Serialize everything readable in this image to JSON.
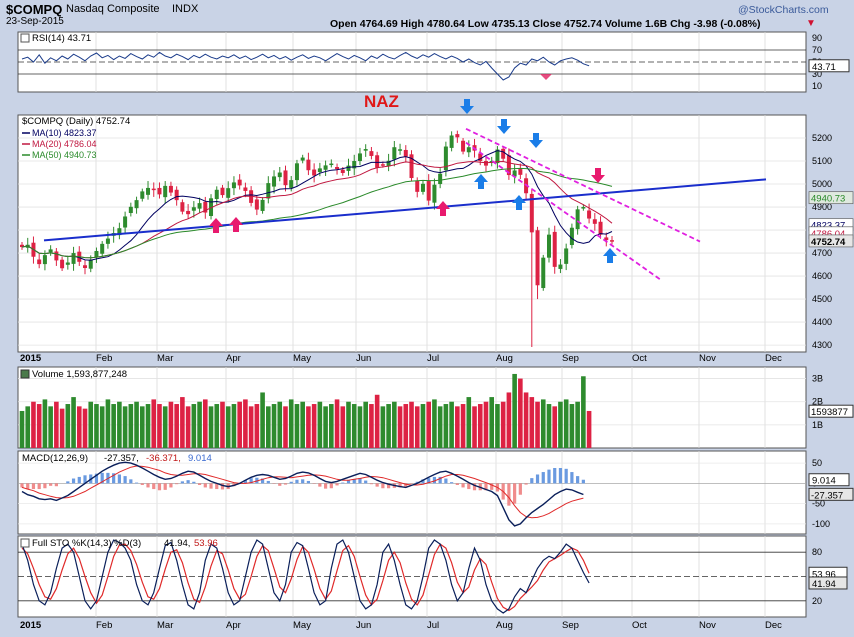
{
  "header": {
    "symbol": "$COMPQ",
    "name": "Nasdaq Composite",
    "exchange": "INDX",
    "date": "23-Sep-2015",
    "ohlc": "Open 4764.69  High 4780.64  Low 4735.13  Close 4752.74  Volume 1.6B  Chg -3.98 (-0.08%)",
    "watermark": "@StockCharts.com"
  },
  "colors": {
    "background": "#c9d3e6",
    "panel": "#ffffff",
    "up_bar": "#2e8b2e",
    "down_bar": "#dd2244",
    "trendline": "#1a2ecc",
    "channel": "#e020e0",
    "ma10": "#000060",
    "ma20": "#c01840",
    "ma50": "#2a8a2a",
    "naz_label": "#e01818",
    "arrow_up": "#e81a6e",
    "arrow_blue": "#1a7de8"
  },
  "chart_data": [
    {
      "type": "line",
      "panel": "rsi",
      "title": "RSI(14) 43.71",
      "yticks": [
        90,
        70,
        50,
        30,
        10
      ],
      "ylim": [
        0,
        100
      ],
      "reference_lines": [
        70,
        50,
        30
      ],
      "last_value_label": "43.71",
      "series": [
        {
          "values": [
            55,
            58,
            50,
            62,
            48,
            57,
            52,
            60,
            55,
            63,
            58,
            52,
            60,
            65,
            57,
            61,
            54,
            60,
            56,
            64,
            59,
            55,
            62,
            58,
            66,
            60,
            57,
            63,
            59,
            54,
            61,
            57,
            63,
            58,
            55,
            60,
            57,
            62,
            56,
            60,
            54,
            58,
            63,
            57,
            61,
            55,
            59,
            53,
            58,
            62,
            56,
            60,
            57,
            52,
            58,
            64,
            59,
            55,
            61,
            57,
            52,
            60,
            56,
            63,
            58,
            55,
            61,
            66,
            60,
            56,
            62,
            58,
            64,
            59,
            55,
            60,
            56,
            50,
            55,
            49,
            45,
            51,
            40,
            30,
            20,
            25,
            40,
            48,
            45,
            55,
            52,
            58,
            50,
            45,
            52,
            55,
            57,
            53,
            47,
            43.71
          ]
        }
      ]
    },
    {
      "type": "candlestick",
      "panel": "price",
      "title": "$COMPQ (Daily) 4752.74",
      "annotation": "NAZ",
      "ylim": [
        4270,
        5300
      ],
      "yticks": [
        5200,
        5100,
        5000,
        4900,
        4800,
        4700,
        4600,
        4500,
        4400,
        4300
      ],
      "xlabels": [
        "2015",
        "Feb",
        "Mar",
        "Apr",
        "May",
        "Jun",
        "Jul",
        "Aug",
        "Sep",
        "Oct",
        "Nov",
        "Dec"
      ],
      "series": [
        {
          "name": "MA(10) 4823.37",
          "last": "4823.37"
        },
        {
          "name": "MA(20) 4786.04",
          "last": "4786.04"
        },
        {
          "name": "MA(50) 4940.73",
          "last": "4940.73"
        }
      ],
      "price_labels": [
        "4940.73",
        "4823.37",
        "4786.04",
        "4752.74"
      ],
      "close": [
        4726,
        4736,
        4684,
        4652,
        4691,
        4716,
        4668,
        4634,
        4659,
        4700,
        4662,
        4635,
        4672,
        4709,
        4740,
        4763,
        4787,
        4808,
        4859,
        4901,
        4930,
        4968,
        4983,
        4974,
        4955,
        4992,
        4963,
        4930,
        4880,
        4869,
        4899,
        4917,
        4876,
        4938,
        4975,
        4952,
        4982,
        5007,
        4994,
        4970,
        4918,
        4889,
        4931,
        5004,
        5033,
        5050,
        4995,
        5017,
        5090,
        5115,
        5060,
        5037,
        5068,
        5081,
        5089,
        5065,
        5048,
        5080,
        5100,
        5133,
        5152,
        5122,
        5071,
        5083,
        5101,
        5160,
        5151,
        5120,
        5026,
        4966,
        5001,
        4928,
        4997,
        5045,
        5163,
        5211,
        5203,
        5141,
        5160,
        5145,
        5100,
        5080,
        5100,
        5150,
        5110,
        5039,
        5059,
        5040,
        4960,
        4790,
        4560,
        4680,
        4780,
        4640,
        4650,
        4720,
        4810,
        4890,
        4900,
        4850,
        4827,
        4780,
        4756,
        4752.74
      ]
    },
    {
      "type": "bar",
      "panel": "volume",
      "title": "Volume 1,593,877,248",
      "yticks": [
        "3B",
        "2B",
        "1B"
      ],
      "last_value_label": "1593877",
      "values": [
        1.6,
        1.8,
        2.0,
        1.9,
        2.1,
        1.8,
        2.0,
        1.7,
        1.9,
        2.2,
        1.8,
        1.7,
        2.0,
        1.9,
        1.8,
        2.1,
        1.9,
        2.0,
        1.8,
        1.9,
        2.0,
        1.8,
        1.9,
        2.1,
        1.9,
        1.8,
        2.0,
        1.9,
        2.2,
        1.8,
        1.9,
        2.0,
        2.1,
        1.8,
        1.9,
        2.0,
        1.8,
        1.9,
        2.0,
        2.1,
        1.8,
        1.9,
        2.4,
        1.8,
        1.9,
        2.0,
        1.8,
        2.1,
        1.9,
        2.0,
        1.8,
        1.9,
        2.0,
        1.8,
        1.9,
        2.1,
        1.8,
        2.0,
        1.9,
        1.8,
        2.0,
        1.9,
        2.3,
        1.8,
        1.9,
        2.0,
        1.8,
        1.9,
        2.0,
        1.8,
        1.9,
        2.0,
        2.1,
        1.8,
        1.9,
        2.0,
        1.8,
        1.9,
        2.2,
        1.8,
        1.9,
        2.0,
        2.2,
        1.9,
        2.0,
        2.4,
        3.2,
        3.0,
        2.4,
        2.2,
        2.0,
        2.1,
        1.9,
        1.8,
        2.0,
        2.1,
        1.9,
        2.0,
        3.1,
        1.6
      ]
    },
    {
      "type": "line",
      "panel": "macd",
      "title": "MACD(12,26,9) -27.357, -36.371, 9.014",
      "yticks": [
        50,
        0,
        -50,
        -100
      ],
      "ylim": [
        -125,
        80
      ],
      "value_labels": [
        "9.014",
        "-27.357"
      ],
      "series": [
        {
          "name": "MACD",
          "values": [
            -20,
            -28,
            -32,
            -38,
            -40,
            -38,
            -42,
            -36,
            -30,
            -20,
            -10,
            0,
            10,
            20,
            30,
            38,
            45,
            50,
            52,
            50,
            45,
            38,
            30,
            22,
            15,
            10,
            12,
            18,
            25,
            30,
            28,
            20,
            12,
            5,
            0,
            -5,
            -8,
            -5,
            0,
            8,
            15,
            20,
            22,
            20,
            15,
            10,
            12,
            18,
            25,
            28,
            26,
            20,
            12,
            5,
            2,
            5,
            10,
            15,
            20,
            25,
            22,
            15,
            8,
            2,
            -2,
            -5,
            -8,
            -10,
            -5,
            0,
            8,
            15,
            22,
            28,
            30,
            25,
            18,
            10,
            2,
            -5,
            -10,
            -15,
            -20,
            -30,
            -60,
            -90,
            -105,
            -100,
            -85,
            -72,
            -62,
            -52,
            -40,
            -28,
            -20,
            -14,
            -16,
            -22,
            -27.357
          ]
        },
        {
          "name": "Signal",
          "values": [
            -10,
            -14,
            -18,
            -24,
            -28,
            -32,
            -35,
            -36,
            -35,
            -32,
            -26,
            -20,
            -12,
            -4,
            4,
            12,
            20,
            28,
            34,
            40,
            43,
            42,
            40,
            36,
            32,
            26,
            22,
            20,
            20,
            22,
            24,
            24,
            22,
            18,
            14,
            10,
            6,
            2,
            0,
            0,
            2,
            6,
            10,
            14,
            16,
            16,
            15,
            14,
            16,
            18,
            20,
            21,
            20,
            18,
            14,
            10,
            8,
            8,
            10,
            12,
            15,
            17,
            16,
            14,
            10,
            6,
            2,
            -2,
            -4,
            -4,
            -2,
            2,
            6,
            12,
            18,
            22,
            22,
            20,
            16,
            12,
            7,
            2,
            -4,
            -10,
            -20,
            -35,
            -55,
            -72,
            -82,
            -85,
            -84,
            -80,
            -74,
            -66,
            -58,
            -50,
            -44,
            -40,
            -36.371
          ]
        }
      ]
    },
    {
      "type": "line",
      "panel": "stochastic",
      "title": "Full STO %K(14,3) %D(3) 41.94, 53.96",
      "yticks": [
        80,
        50,
        20
      ],
      "ylim": [
        0,
        100
      ],
      "reference_lines": [
        80,
        50,
        20
      ],
      "value_labels": [
        "53.96",
        "41.94"
      ],
      "series": [
        {
          "name": "%K",
          "values": [
            90,
            70,
            40,
            20,
            15,
            30,
            60,
            85,
            90,
            80,
            50,
            20,
            10,
            20,
            50,
            80,
            95,
            92,
            85,
            70,
            40,
            20,
            15,
            30,
            60,
            88,
            92,
            70,
            40,
            15,
            10,
            30,
            70,
            90,
            85,
            60,
            30,
            15,
            20,
            50,
            80,
            95,
            90,
            60,
            30,
            20,
            40,
            80,
            92,
            88,
            60,
            30,
            15,
            20,
            60,
            90,
            95,
            80,
            50,
            20,
            10,
            15,
            40,
            80,
            90,
            70,
            40,
            15,
            10,
            20,
            50,
            85,
            95,
            90,
            70,
            40,
            20,
            30,
            60,
            85,
            70,
            40,
            20,
            10,
            5,
            10,
            25,
            35,
            30,
            45,
            60,
            70,
            75,
            72,
            80,
            90,
            85,
            70,
            55,
            41.94
          ]
        },
        {
          "name": "%D",
          "values": [
            85,
            78,
            60,
            40,
            25,
            22,
            35,
            58,
            78,
            85,
            72,
            50,
            30,
            17,
            27,
            50,
            75,
            89,
            90,
            82,
            65,
            43,
            25,
            22,
            35,
            59,
            80,
            83,
            67,
            42,
            22,
            18,
            37,
            63,
            82,
            78,
            58,
            35,
            22,
            28,
            50,
            75,
            88,
            82,
            60,
            37,
            30,
            47,
            71,
            87,
            80,
            59,
            35,
            22,
            32,
            57,
            82,
            88,
            75,
            50,
            27,
            15,
            22,
            45,
            70,
            80,
            67,
            42,
            22,
            15,
            27,
            52,
            77,
            90,
            85,
            67,
            43,
            30,
            37,
            58,
            72,
            65,
            43,
            23,
            12,
            8,
            13,
            23,
            30,
            37,
            45,
            58,
            68,
            72,
            76,
            81,
            85,
            82,
            70,
            53.96
          ]
        }
      ]
    }
  ]
}
